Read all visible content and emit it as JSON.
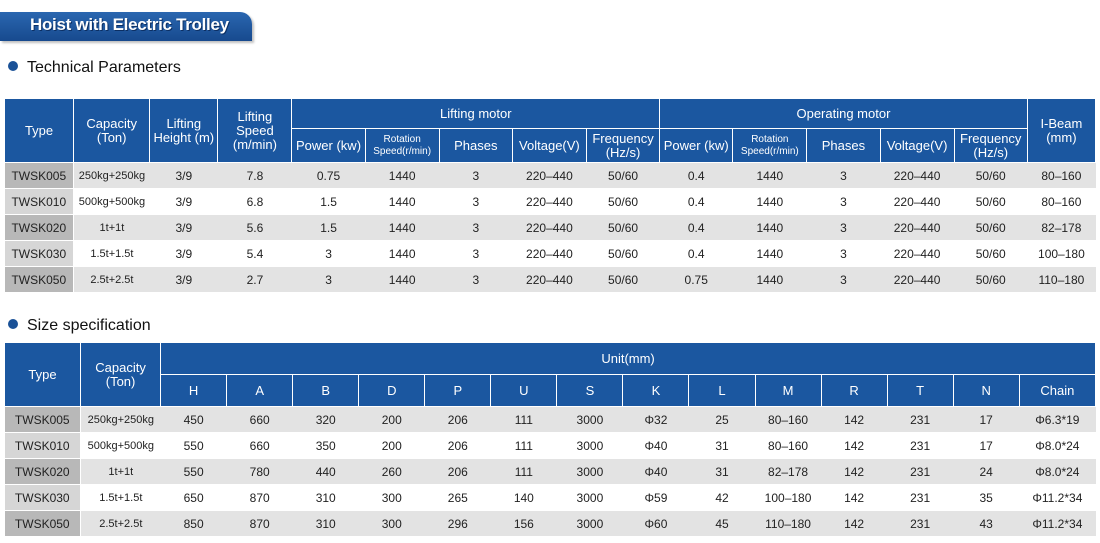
{
  "banner": {
    "title": "Hoist with Electric Trolley"
  },
  "technical": {
    "heading": "Technical Parameters",
    "head": {
      "type": "Type",
      "capacity": "Capacity (Ton)",
      "lifting_height": "Lifting Height (m)",
      "lifting_speed": "Lifting Speed (m/min)",
      "lifting_motor": "Lifting motor",
      "operating_motor": "Operating motor",
      "ibeam": "I-Beam (mm)",
      "power": "Power (kw)",
      "rotation": "Rotation Speed(r/min)",
      "phases": "Phases",
      "voltage": "Voltage(V)",
      "frequency": "Frequency (Hz/s)"
    },
    "rows": [
      [
        "TWSK005",
        "250kg+250kg",
        "3/9",
        "7.8",
        "0.75",
        "1440",
        "3",
        "220–440",
        "50/60",
        "0.4",
        "1440",
        "3",
        "220–440",
        "50/60",
        "80–160"
      ],
      [
        "TWSK010",
        "500kg+500kg",
        "3/9",
        "6.8",
        "1.5",
        "1440",
        "3",
        "220–440",
        "50/60",
        "0.4",
        "1440",
        "3",
        "220–440",
        "50/60",
        "80–160"
      ],
      [
        "TWSK020",
        "1t+1t",
        "3/9",
        "5.6",
        "1.5",
        "1440",
        "3",
        "220–440",
        "50/60",
        "0.4",
        "1440",
        "3",
        "220–440",
        "50/60",
        "82–178"
      ],
      [
        "TWSK030",
        "1.5t+1.5t",
        "3/9",
        "5.4",
        "3",
        "1440",
        "3",
        "220–440",
        "50/60",
        "0.4",
        "1440",
        "3",
        "220–440",
        "50/60",
        "100–180"
      ],
      [
        "TWSK050",
        "2.5t+2.5t",
        "3/9",
        "2.7",
        "3",
        "1440",
        "3",
        "220–440",
        "50/60",
        "0.75",
        "1440",
        "3",
        "220–440",
        "50/60",
        "110–180"
      ]
    ]
  },
  "size": {
    "heading": "Size specification",
    "head": {
      "type": "Type",
      "capacity": "Capacity (Ton)",
      "unit": "Unit(mm)",
      "cols": [
        "H",
        "A",
        "B",
        "D",
        "P",
        "U",
        "S",
        "K",
        "L",
        "M",
        "R",
        "T",
        "N",
        "Chain"
      ]
    },
    "rows": [
      [
        "TWSK005",
        "250kg+250kg",
        "450",
        "660",
        "320",
        "200",
        "206",
        "111",
        "3000",
        "Φ32",
        "25",
        "80–160",
        "142",
        "231",
        "17",
        "Φ6.3*19"
      ],
      [
        "TWSK010",
        "500kg+500kg",
        "550",
        "660",
        "350",
        "200",
        "206",
        "111",
        "3000",
        "Φ40",
        "31",
        "80–160",
        "142",
        "231",
        "17",
        "Φ8.0*24"
      ],
      [
        "TWSK020",
        "1t+1t",
        "550",
        "780",
        "440",
        "260",
        "206",
        "111",
        "3000",
        "Φ40",
        "31",
        "82–178",
        "142",
        "231",
        "24",
        "Φ8.0*24"
      ],
      [
        "TWSK030",
        "1.5t+1.5t",
        "650",
        "870",
        "310",
        "300",
        "265",
        "140",
        "3000",
        "Φ59",
        "42",
        "100–180",
        "142",
        "231",
        "35",
        "Φ11.2*34"
      ],
      [
        "TWSK050",
        "2.5t+2.5t",
        "850",
        "870",
        "310",
        "300",
        "296",
        "156",
        "3000",
        "Φ60",
        "45",
        "110–180",
        "142",
        "231",
        "43",
        "Φ11.2*34"
      ]
    ]
  }
}
